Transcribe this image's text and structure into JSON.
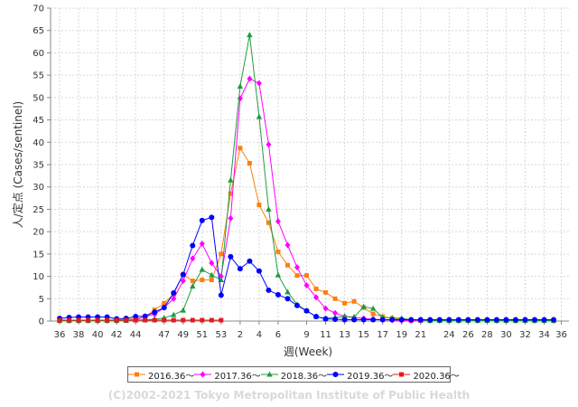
{
  "chart_data": {
    "type": "line",
    "ylabel": "人/定点 (Cases/sentinel)",
    "xlabel": "週(Week)",
    "ylim": [
      0,
      70
    ],
    "yticks": [
      0,
      5,
      10,
      15,
      20,
      25,
      30,
      35,
      40,
      45,
      50,
      55,
      60,
      65,
      70
    ],
    "xtick_labels": [
      "36",
      "38",
      "40",
      "42",
      "44",
      "47",
      "49",
      "51",
      "53",
      "2",
      "4",
      "6",
      "9",
      "11",
      "13",
      "15",
      "17",
      "19",
      "21",
      "24",
      "26",
      "28",
      "30",
      "32",
      "34",
      "36"
    ],
    "grid": true,
    "legend_position": "bottom",
    "series": [
      {
        "name": "2016.36～",
        "color": "#ff7f0e",
        "marker": "square",
        "values": [
          0.3,
          0.2,
          0.2,
          0.2,
          0.2,
          0.2,
          0.3,
          0.4,
          0.5,
          1.0,
          2.5,
          4.0,
          6.0,
          10.5,
          9.0,
          9.2,
          9.2,
          15.0,
          28.5,
          38.7,
          35.3,
          26.0,
          22.0,
          15.5,
          12.5,
          10.2,
          10.2,
          7.2,
          6.4,
          5.0,
          4.0,
          4.4,
          3.0,
          1.6,
          1.0,
          0.6,
          0.3,
          0.1,
          0.1,
          0.1,
          0.1,
          0.1,
          0.1,
          0.1,
          0.1,
          0.1,
          0.1,
          0.1,
          0.1,
          0.1,
          0.1,
          0.1,
          0.1
        ]
      },
      {
        "name": "2017.36～",
        "color": "#ff00ff",
        "marker": "diamond",
        "values": [
          0.1,
          0.1,
          0.1,
          0.1,
          0.1,
          0.1,
          0.1,
          0.2,
          0.3,
          1.0,
          1.5,
          3.0,
          5.0,
          9.0,
          14.0,
          17.3,
          13.0,
          10.0,
          23.0,
          49.8,
          54.2,
          53.2,
          39.5,
          22.3,
          17.0,
          12.0,
          8.0,
          5.3,
          2.8,
          1.8,
          1.0,
          0.8,
          0.6,
          0.4,
          0.3,
          0.2,
          0.1,
          0.1,
          0.1,
          0.1,
          0.1,
          0.1,
          0.1,
          0.1,
          0.1,
          0.1,
          0.1,
          0.1,
          0.1,
          0.1,
          0.1,
          0.1,
          0.1
        ]
      },
      {
        "name": "2018.36～",
        "color": "#1f9c3d",
        "marker": "triangle",
        "values": [
          0.1,
          0.1,
          0.1,
          0.1,
          0.1,
          0.1,
          0.1,
          0.1,
          0.2,
          0.3,
          0.4,
          0.7,
          1.4,
          2.4,
          7.8,
          11.5,
          10.3,
          9.2,
          31.5,
          52.5,
          64.0,
          45.7,
          25.0,
          10.3,
          6.5,
          3.7,
          2.3,
          1.0,
          0.6,
          0.8,
          1.0,
          0.9,
          3.2,
          2.8,
          0.8,
          0.7,
          0.6,
          0.3,
          0.2,
          0.1,
          0.1,
          0.1,
          0.1,
          0.1,
          0.1,
          0.1,
          0.1,
          0.1,
          0.1,
          0.1,
          0.1,
          0.1,
          0.1
        ]
      },
      {
        "name": "2019.36～",
        "color": "#0000ff",
        "marker": "circle",
        "values": [
          0.6,
          0.8,
          0.9,
          0.9,
          0.9,
          0.9,
          0.5,
          0.6,
          1.0,
          1.1,
          2.0,
          3.0,
          6.3,
          10.4,
          16.9,
          22.5,
          23.2,
          5.8,
          14.4,
          11.7,
          13.4,
          11.2,
          6.9,
          5.9,
          5.0,
          3.5,
          2.3,
          1.0,
          0.5,
          0.4,
          0.3,
          0.3,
          0.3,
          0.3,
          0.3,
          0.3,
          0.3,
          0.3,
          0.3,
          0.3,
          0.3,
          0.3,
          0.3,
          0.3,
          0.3,
          0.3,
          0.3,
          0.3,
          0.3,
          0.3,
          0.3,
          0.3,
          0.3
        ]
      },
      {
        "name": "2020.36～",
        "color": "#e31a1c",
        "marker": "square",
        "values": [
          0.2,
          0.2,
          0.2,
          0.2,
          0.2,
          0.2,
          0.2,
          0.2,
          0.2,
          0.2,
          0.2,
          0.2,
          0.2,
          0.2,
          0.2,
          0.2,
          0.2,
          0.2
        ]
      }
    ]
  },
  "copyright": "(C)2002-2021 Tokyo Metropolitan Institute of Public Health"
}
